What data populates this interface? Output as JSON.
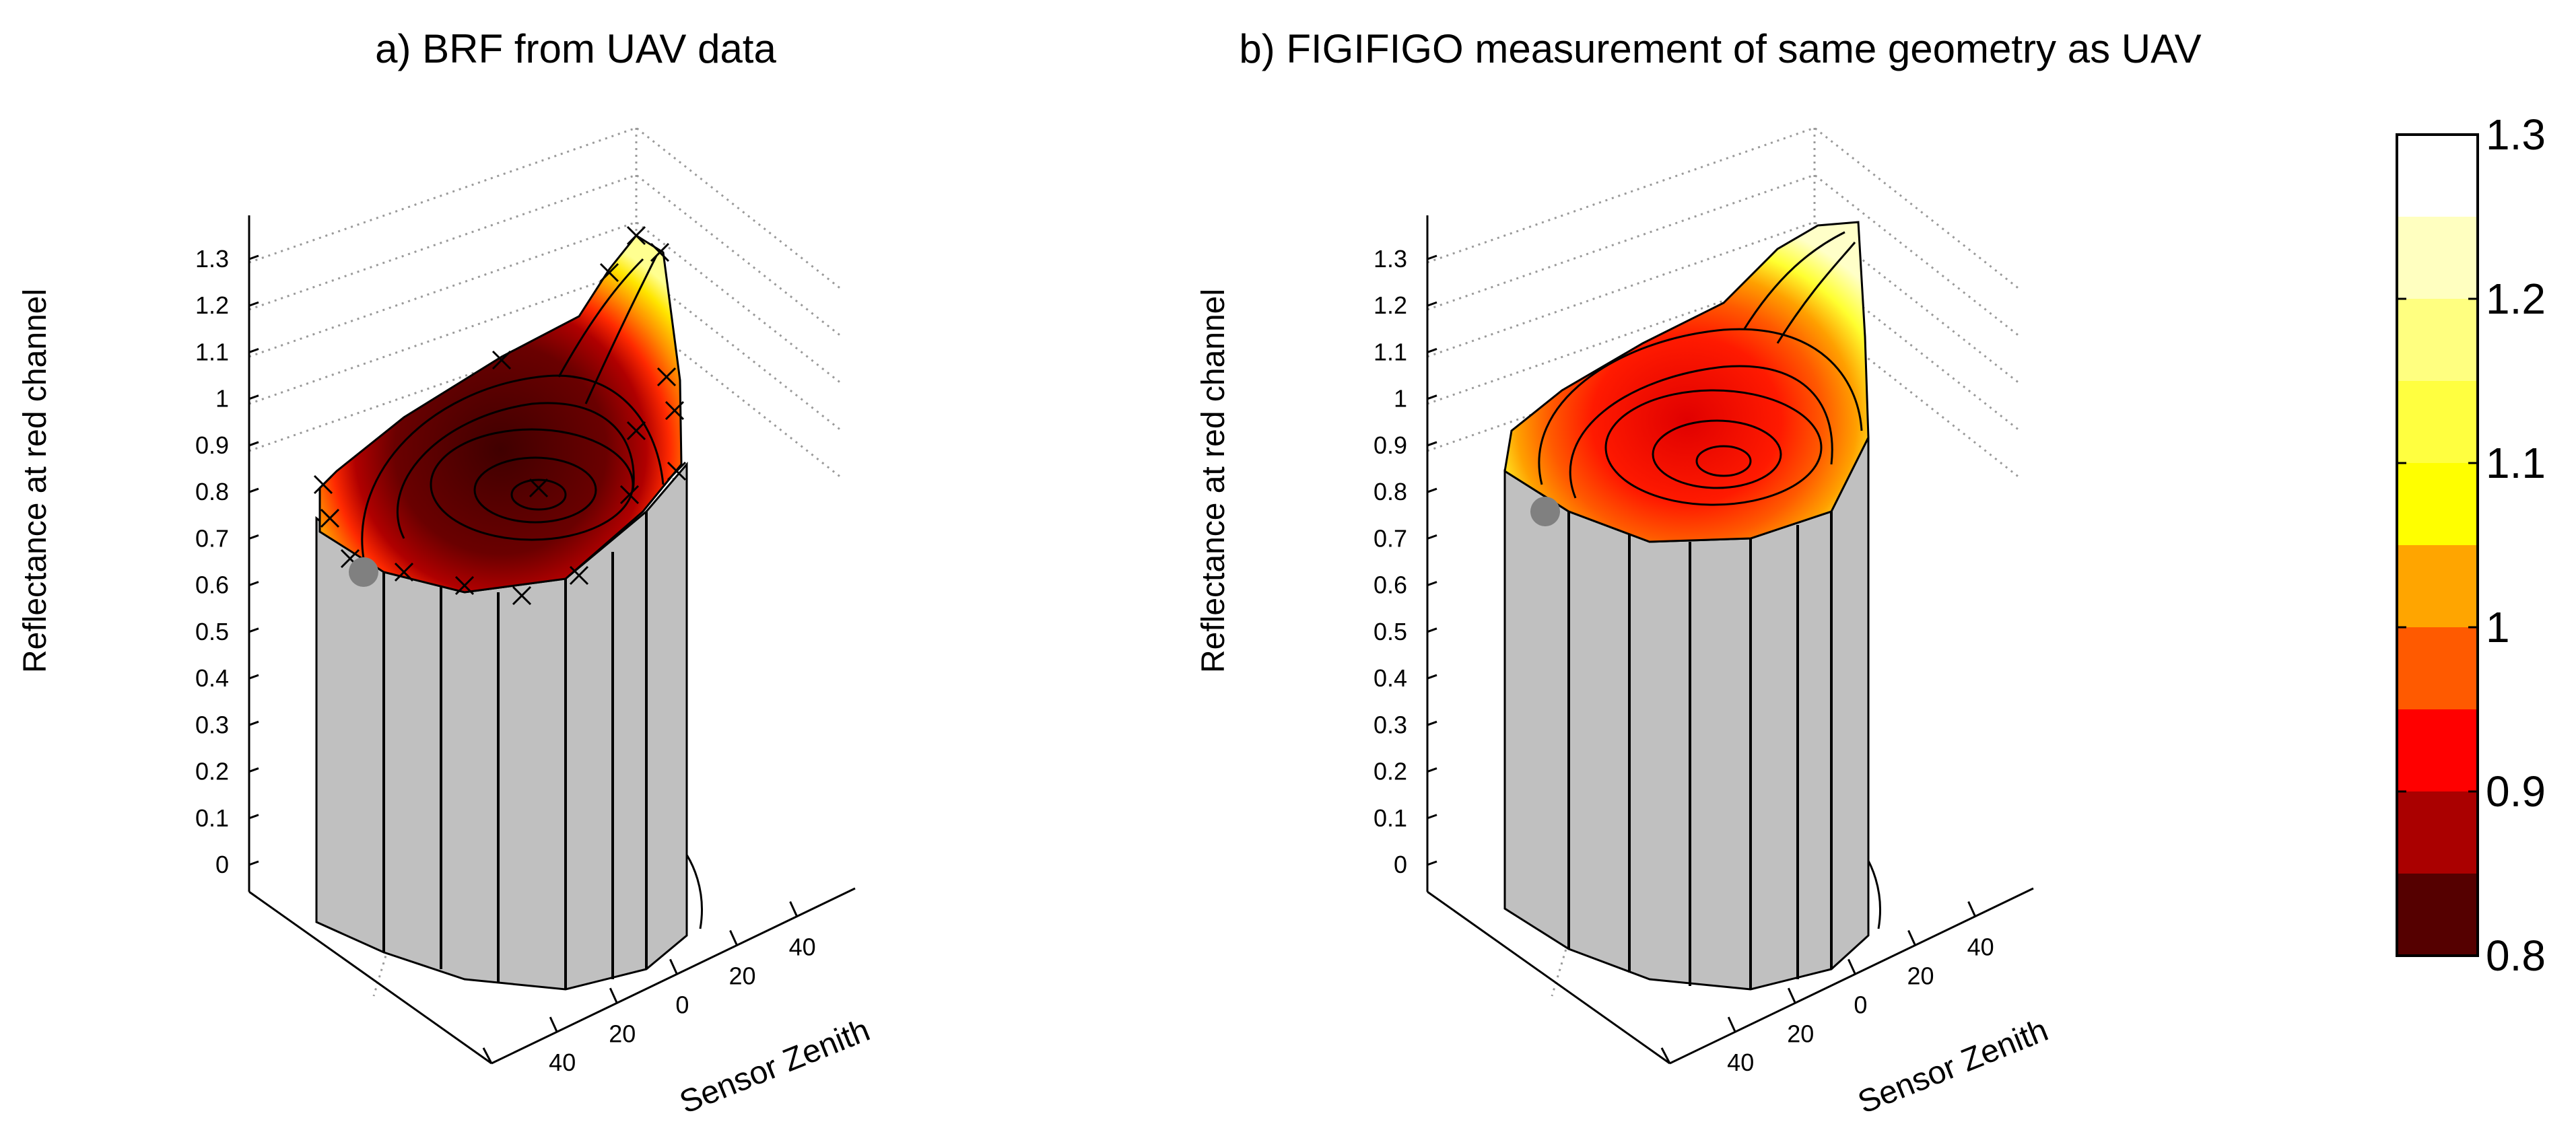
{
  "colors": {
    "cylinder": "#c0c0c0",
    "outline": "#000000",
    "gridline": "#9a9a9a",
    "sun_marker": "#808080"
  },
  "chart_data": [
    {
      "type": "surface3d",
      "title": "a) BRF from UAV data",
      "zlabel": "Reflectance at red channel",
      "ylabel": "Sensor Zenith",
      "zlim": [
        0,
        1.3
      ],
      "z_ticks": [
        "0",
        "0.1",
        "0.2",
        "0.3",
        "0.4",
        "0.5",
        "0.6",
        "0.7",
        "0.8",
        "0.9",
        "1",
        "1.1",
        "1.2",
        "1.3"
      ],
      "y_ticks": [
        "40",
        "20",
        "0",
        "20",
        "40"
      ],
      "brf_min": 0.8,
      "brf_max": 1.3,
      "has_measurement_markers": true
    },
    {
      "type": "surface3d",
      "title": "b) FIGIFIGO measurement of same geometry as UAV",
      "zlabel": "Reflectance at red channel",
      "ylabel": "Sensor Zenith",
      "zlim": [
        0,
        1.3
      ],
      "z_ticks": [
        "0",
        "0.1",
        "0.2",
        "0.3",
        "0.4",
        "0.5",
        "0.6",
        "0.7",
        "0.8",
        "0.9",
        "1",
        "1.1",
        "1.2",
        "1.3"
      ],
      "y_ticks": [
        "40",
        "20",
        "0",
        "20",
        "40"
      ],
      "brf_min": 0.9,
      "brf_max": 1.3,
      "has_measurement_markers": false
    }
  ],
  "colorbar": {
    "min": 0.8,
    "max": 1.3,
    "tick_labels": [
      "1.3",
      "1.2",
      "1.1",
      "1",
      "0.9",
      "0.8"
    ],
    "colors_top_to_bottom": [
      "#ffffff",
      "#ffffc0",
      "#ffff80",
      "#ffff40",
      "#ffff00",
      "#ffa500",
      "#ff5a00",
      "#ff0000",
      "#aa0000",
      "#550000"
    ]
  }
}
